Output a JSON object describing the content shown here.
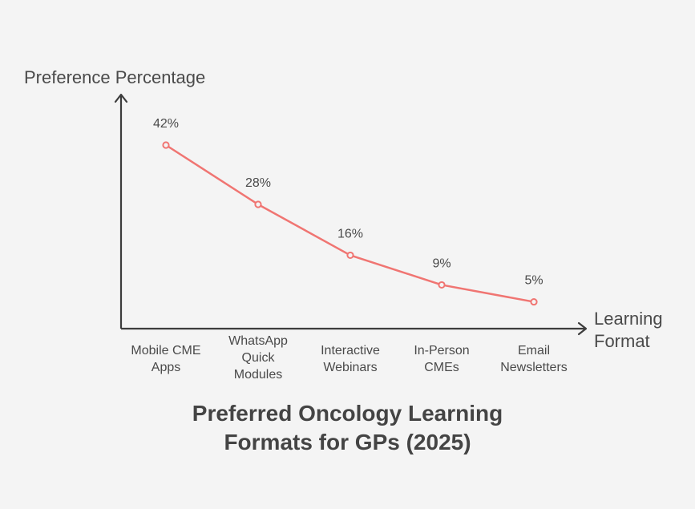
{
  "chart_data": {
    "type": "line",
    "title_lines": [
      "Preferred Oncology Learning",
      "Formats for GPs (2025)"
    ],
    "ylabel": "Preference Percentage",
    "xlabel_lines": [
      "Learning",
      "Format"
    ],
    "categories": [
      [
        "Mobile CME",
        "Apps"
      ],
      [
        "WhatsApp",
        "Quick",
        "Modules"
      ],
      [
        "Interactive",
        "Webinars"
      ],
      [
        "In-Person",
        "CMEs"
      ],
      [
        "Email",
        "Newsletters"
      ]
    ],
    "values": [
      42,
      28,
      16,
      9,
      5
    ],
    "value_labels": [
      "42%",
      "28%",
      "16%",
      "9%",
      "5%"
    ],
    "colors": {
      "line": "#f07572",
      "axis": "#3c3c3c",
      "text": "#4a4a4a"
    },
    "grid": false,
    "legend": "none"
  }
}
